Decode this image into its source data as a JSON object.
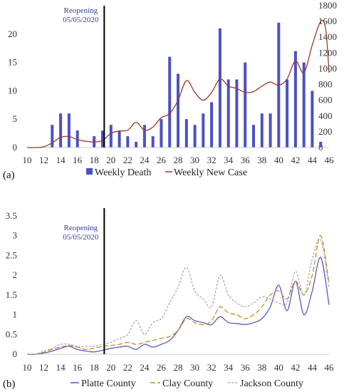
{
  "chart_data": [
    {
      "type": "bar+line",
      "panel_label": "(a)",
      "title": "",
      "xlabel": "",
      "ylabel": "",
      "x_ticks": [
        "10",
        "12",
        "14",
        "16",
        "18",
        "20",
        "22",
        "24",
        "26",
        "28",
        "30",
        "32",
        "34",
        "36",
        "38",
        "40",
        "42",
        "44",
        "46"
      ],
      "y_left_ticks": [
        "0",
        "5",
        "10",
        "15",
        "20"
      ],
      "y_right_ticks": [
        "0",
        "200",
        "400",
        "600",
        "800",
        "1000",
        "1200",
        "1400",
        "1600",
        "1800"
      ],
      "ylim_left": [
        0,
        25
      ],
      "ylim_right": [
        0,
        1800
      ],
      "xlim": [
        10,
        46
      ],
      "annotation": {
        "line1": "Reopening",
        "line2": "05/05/2020",
        "x": 19.2
      },
      "legend_placement": "bottom",
      "bar_color": "#4b51c4",
      "line_color": "#9b3a2a",
      "series": [
        {
          "name": "Weekly Death",
          "kind": "bar",
          "axis": "left",
          "x": [
            13,
            14,
            15,
            16,
            18,
            19,
            20,
            21,
            22,
            23,
            24,
            25,
            26,
            27,
            28,
            29,
            30,
            31,
            32,
            33,
            34,
            35,
            36,
            37,
            38,
            39,
            40,
            41,
            42,
            43,
            44,
            45
          ],
          "values": [
            4,
            6,
            6,
            3,
            2,
            3,
            4,
            3,
            2,
            1,
            4,
            2,
            5,
            16,
            13,
            5,
            4,
            6,
            8,
            21,
            12,
            12,
            15,
            4,
            6,
            6,
            22,
            12,
            17,
            15,
            10,
            1
          ]
        },
        {
          "name": "Weekly New Case",
          "kind": "line",
          "axis": "right",
          "x": [
            10,
            11,
            12,
            13,
            14,
            15,
            16,
            17,
            18,
            19,
            20,
            21,
            22,
            23,
            24,
            25,
            26,
            27,
            28,
            29,
            30,
            31,
            32,
            33,
            34,
            35,
            36,
            37,
            38,
            39,
            40,
            41,
            42,
            43,
            44,
            45,
            45.6,
            46
          ],
          "values": [
            0,
            0,
            10,
            60,
            130,
            140,
            100,
            80,
            70,
            90,
            180,
            210,
            220,
            320,
            220,
            260,
            380,
            430,
            600,
            850,
            700,
            600,
            700,
            870,
            780,
            750,
            700,
            710,
            780,
            830,
            790,
            870,
            1100,
            950,
            1300,
            1600,
            1500,
            950
          ]
        }
      ]
    },
    {
      "type": "line",
      "panel_label": "(b)",
      "title": "",
      "xlabel": "",
      "ylabel": "",
      "x_ticks": [
        "10",
        "12",
        "14",
        "16",
        "18",
        "20",
        "22",
        "24",
        "26",
        "28",
        "30",
        "32",
        "34",
        "36",
        "38",
        "40",
        "42",
        "44",
        "46"
      ],
      "y_ticks": [
        "0",
        "0.5",
        "1",
        "1.5",
        "2",
        "2.5",
        "3",
        "3.5"
      ],
      "ylim": [
        0,
        3.5
      ],
      "xlim": [
        10,
        46
      ],
      "annotation": {
        "line1": "Reopening",
        "line2": "05/05/2020",
        "x": 19.2
      },
      "legend_placement": "bottom",
      "series": [
        {
          "name": "Platte County",
          "color": "#5a5ac8",
          "dash": "solid",
          "x": [
            10,
            11,
            12,
            13,
            14,
            15,
            16,
            17,
            18,
            19,
            20,
            21,
            22,
            23,
            24,
            25,
            26,
            27,
            28,
            29,
            30,
            31,
            32,
            33,
            34,
            35,
            36,
            37,
            38,
            39,
            40,
            41,
            42,
            43,
            44,
            45,
            46
          ],
          "values": [
            0,
            0,
            0.03,
            0.08,
            0.15,
            0.2,
            0.12,
            0.08,
            0.06,
            0.1,
            0.15,
            0.18,
            0.2,
            0.12,
            0.25,
            0.18,
            0.25,
            0.35,
            0.6,
            0.95,
            0.85,
            0.8,
            0.75,
            0.95,
            0.8,
            0.78,
            0.75,
            0.8,
            0.9,
            1.2,
            1.75,
            1.1,
            1.85,
            1.0,
            1.6,
            2.45,
            1.25
          ]
        },
        {
          "name": "Clay County",
          "color": "#c4901f",
          "dash": "longdash",
          "x": [
            10,
            11,
            12,
            13,
            14,
            15,
            16,
            17,
            18,
            19,
            20,
            21,
            22,
            23,
            24,
            25,
            26,
            27,
            28,
            29,
            30,
            31,
            32,
            33,
            34,
            35,
            36,
            37,
            38,
            39,
            40,
            41,
            42,
            43,
            44,
            45,
            46
          ],
          "values": [
            0,
            0,
            0.05,
            0.12,
            0.18,
            0.22,
            0.18,
            0.12,
            0.15,
            0.2,
            0.22,
            0.25,
            0.3,
            0.25,
            0.3,
            0.35,
            0.4,
            0.45,
            0.6,
            0.9,
            0.8,
            0.75,
            0.85,
            1.2,
            1.05,
            1.0,
            0.9,
            1.0,
            1.2,
            1.5,
            1.6,
            1.4,
            1.85,
            1.5,
            2.0,
            3.0,
            1.8
          ]
        },
        {
          "name": "Jackson County",
          "color": "#9a9a9a",
          "dash": "shortdash",
          "x": [
            10,
            11,
            12,
            13,
            14,
            15,
            16,
            17,
            18,
            19,
            20,
            21,
            22,
            23,
            24,
            25,
            26,
            27,
            28,
            29,
            30,
            31,
            32,
            33,
            34,
            35,
            36,
            37,
            38,
            39,
            40,
            41,
            42,
            43,
            44,
            45,
            46
          ],
          "values": [
            0,
            0,
            0.08,
            0.15,
            0.25,
            0.25,
            0.2,
            0.2,
            0.2,
            0.25,
            0.3,
            0.4,
            0.5,
            0.85,
            0.5,
            0.8,
            0.9,
            1.3,
            1.7,
            2.2,
            1.6,
            1.4,
            1.2,
            2.0,
            1.5,
            1.3,
            1.2,
            1.3,
            1.45,
            1.4,
            1.3,
            1.3,
            2.1,
            1.5,
            2.4,
            2.9,
            1.7
          ]
        }
      ]
    }
  ]
}
